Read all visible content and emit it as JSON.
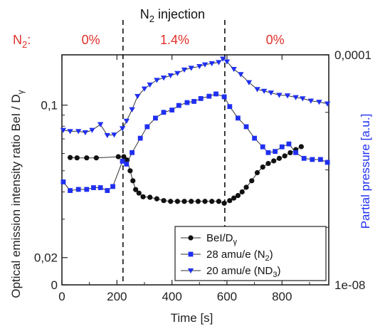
{
  "chart_data": {
    "type": "line",
    "x_axis": {
      "label_main": "Time",
      "label_unit": "[s]",
      "range": [
        0,
        970
      ],
      "ticks": [
        0,
        200,
        400,
        600,
        800
      ]
    },
    "y_left": {
      "label_main": "Optical emission intensity ratio BeI / D",
      "label_sub": "γ",
      "scale": "log",
      "range": [
        0.015,
        0.17
      ],
      "tick_labels": [
        {
          "value": 0.1,
          "text": "0,1"
        },
        {
          "value": 0.02,
          "text": "0,02"
        },
        {
          "value": 0.015,
          "text": "0"
        }
      ],
      "minor_ticks": [
        0.03,
        0.04,
        0.05,
        0.06,
        0.07,
        0.08,
        0.09
      ]
    },
    "y_right": {
      "label": "Partial pressure [a.u.]",
      "color": "#1f2ff0",
      "scale": "log",
      "range_exp": [
        -8,
        -4
      ],
      "tick_labels": [
        {
          "exp": -4,
          "text": "0,0001"
        },
        {
          "exp": -8,
          "text": "1e-08"
        }
      ]
    },
    "annotations": {
      "top_title_pre": "N",
      "top_title_sub": "2",
      "top_title_post": " injection",
      "n2_prefix_main": "N",
      "n2_prefix_sub": "2",
      "n2_prefix_colon": ":",
      "phases": [
        {
          "text": "0%",
          "x": 105
        },
        {
          "text": "1.4%",
          "x": 410
        },
        {
          "text": "0%",
          "x": 775
        }
      ],
      "vlines": [
        222,
        592
      ],
      "color": "#e0302a"
    },
    "legend": {
      "position": "bottom-right",
      "entries": [
        {
          "main": "BeI/D",
          "sub": "γ",
          "tail": "",
          "marker": "circle",
          "color": "#111111"
        },
        {
          "main": "28 amu/e (N",
          "sub": "2",
          "tail": ")",
          "marker": "square",
          "color": "#1f2ff0"
        },
        {
          "main": "20 amu/e (ND",
          "sub": "3",
          "tail": ")",
          "marker": "triangle-down",
          "color": "#1f2ff0"
        }
      ]
    },
    "series": [
      {
        "name": "BeI/Dγ",
        "axis": "left",
        "marker": "circle",
        "color": "#111111",
        "points": [
          [
            30,
            0.0575
          ],
          [
            55,
            0.0573
          ],
          [
            90,
            0.0573
          ],
          [
            125,
            0.0573
          ],
          [
            205,
            0.058
          ],
          [
            225,
            0.058
          ],
          [
            237,
            0.056
          ],
          [
            248,
            0.05
          ],
          [
            258,
            0.045
          ],
          [
            268,
            0.041
          ],
          [
            280,
            0.0395
          ],
          [
            295,
            0.038
          ],
          [
            320,
            0.0378
          ],
          [
            345,
            0.0372
          ],
          [
            370,
            0.0365
          ],
          [
            395,
            0.0362
          ],
          [
            420,
            0.0362
          ],
          [
            445,
            0.0362
          ],
          [
            470,
            0.0362
          ],
          [
            495,
            0.0362
          ],
          [
            520,
            0.0362
          ],
          [
            545,
            0.0362
          ],
          [
            570,
            0.0362
          ],
          [
            590,
            0.0355
          ],
          [
            610,
            0.0365
          ],
          [
            625,
            0.0375
          ],
          [
            640,
            0.0385
          ],
          [
            655,
            0.04
          ],
          [
            670,
            0.042
          ],
          [
            690,
            0.045
          ],
          [
            710,
            0.049
          ],
          [
            730,
            0.052
          ],
          [
            750,
            0.054
          ],
          [
            770,
            0.0555
          ],
          [
            790,
            0.057
          ],
          [
            810,
            0.0585
          ],
          [
            830,
            0.0605
          ],
          [
            850,
            0.0625
          ],
          [
            870,
            0.0645
          ]
        ]
      },
      {
        "name": "28 amu/e (N2)",
        "axis": "right",
        "marker": "square",
        "color": "#1f2ff0",
        "points": [
          [
            5,
            -6.21
          ],
          [
            30,
            -6.36
          ],
          [
            60,
            -6.34
          ],
          [
            90,
            -6.34
          ],
          [
            115,
            -6.31
          ],
          [
            140,
            -6.31
          ],
          [
            165,
            -6.36
          ],
          [
            185,
            -6.29
          ],
          [
            220,
            -5.85
          ],
          [
            235,
            -5.9
          ],
          [
            255,
            -5.7
          ],
          [
            285,
            -5.45
          ],
          [
            310,
            -5.25
          ],
          [
            340,
            -5.1
          ],
          [
            370,
            -5.0
          ],
          [
            400,
            -4.96
          ],
          [
            425,
            -4.88
          ],
          [
            455,
            -4.83
          ],
          [
            480,
            -4.81
          ],
          [
            505,
            -4.76
          ],
          [
            535,
            -4.72
          ],
          [
            560,
            -4.68
          ],
          [
            590,
            -4.73
          ],
          [
            610,
            -4.9
          ],
          [
            640,
            -5.1
          ],
          [
            670,
            -5.25
          ],
          [
            700,
            -5.45
          ],
          [
            730,
            -5.6
          ],
          [
            750,
            -5.7
          ],
          [
            775,
            -5.68
          ],
          [
            800,
            -5.6
          ],
          [
            825,
            -5.55
          ],
          [
            850,
            -5.7
          ],
          [
            880,
            -5.8
          ],
          [
            910,
            -5.82
          ],
          [
            940,
            -5.82
          ],
          [
            965,
            -5.87
          ]
        ]
      },
      {
        "name": "20 amu/e (ND3)",
        "axis": "right",
        "marker": "triangle-down",
        "color": "#1f2ff0",
        "points": [
          [
            5,
            -5.31
          ],
          [
            30,
            -5.33
          ],
          [
            60,
            -5.33
          ],
          [
            85,
            -5.35
          ],
          [
            110,
            -5.31
          ],
          [
            140,
            -5.21
          ],
          [
            165,
            -5.4
          ],
          [
            190,
            -5.39
          ],
          [
            220,
            -5.28
          ],
          [
            235,
            -5.15
          ],
          [
            255,
            -4.95
          ],
          [
            275,
            -4.72
          ],
          [
            300,
            -4.59
          ],
          [
            320,
            -4.52
          ],
          [
            345,
            -4.44
          ],
          [
            370,
            -4.4
          ],
          [
            395,
            -4.36
          ],
          [
            420,
            -4.32
          ],
          [
            445,
            -4.26
          ],
          [
            470,
            -4.23
          ],
          [
            500,
            -4.2
          ],
          [
            520,
            -4.17
          ],
          [
            545,
            -4.15
          ],
          [
            570,
            -4.13
          ],
          [
            585,
            -4.07
          ],
          [
            600,
            -4.12
          ],
          [
            625,
            -4.25
          ],
          [
            650,
            -4.34
          ],
          [
            680,
            -4.48
          ],
          [
            710,
            -4.6
          ],
          [
            735,
            -4.63
          ],
          [
            760,
            -4.66
          ],
          [
            790,
            -4.7
          ],
          [
            820,
            -4.71
          ],
          [
            850,
            -4.74
          ],
          [
            875,
            -4.76
          ],
          [
            905,
            -4.8
          ],
          [
            935,
            -4.82
          ],
          [
            965,
            -4.85
          ]
        ]
      }
    ]
  }
}
